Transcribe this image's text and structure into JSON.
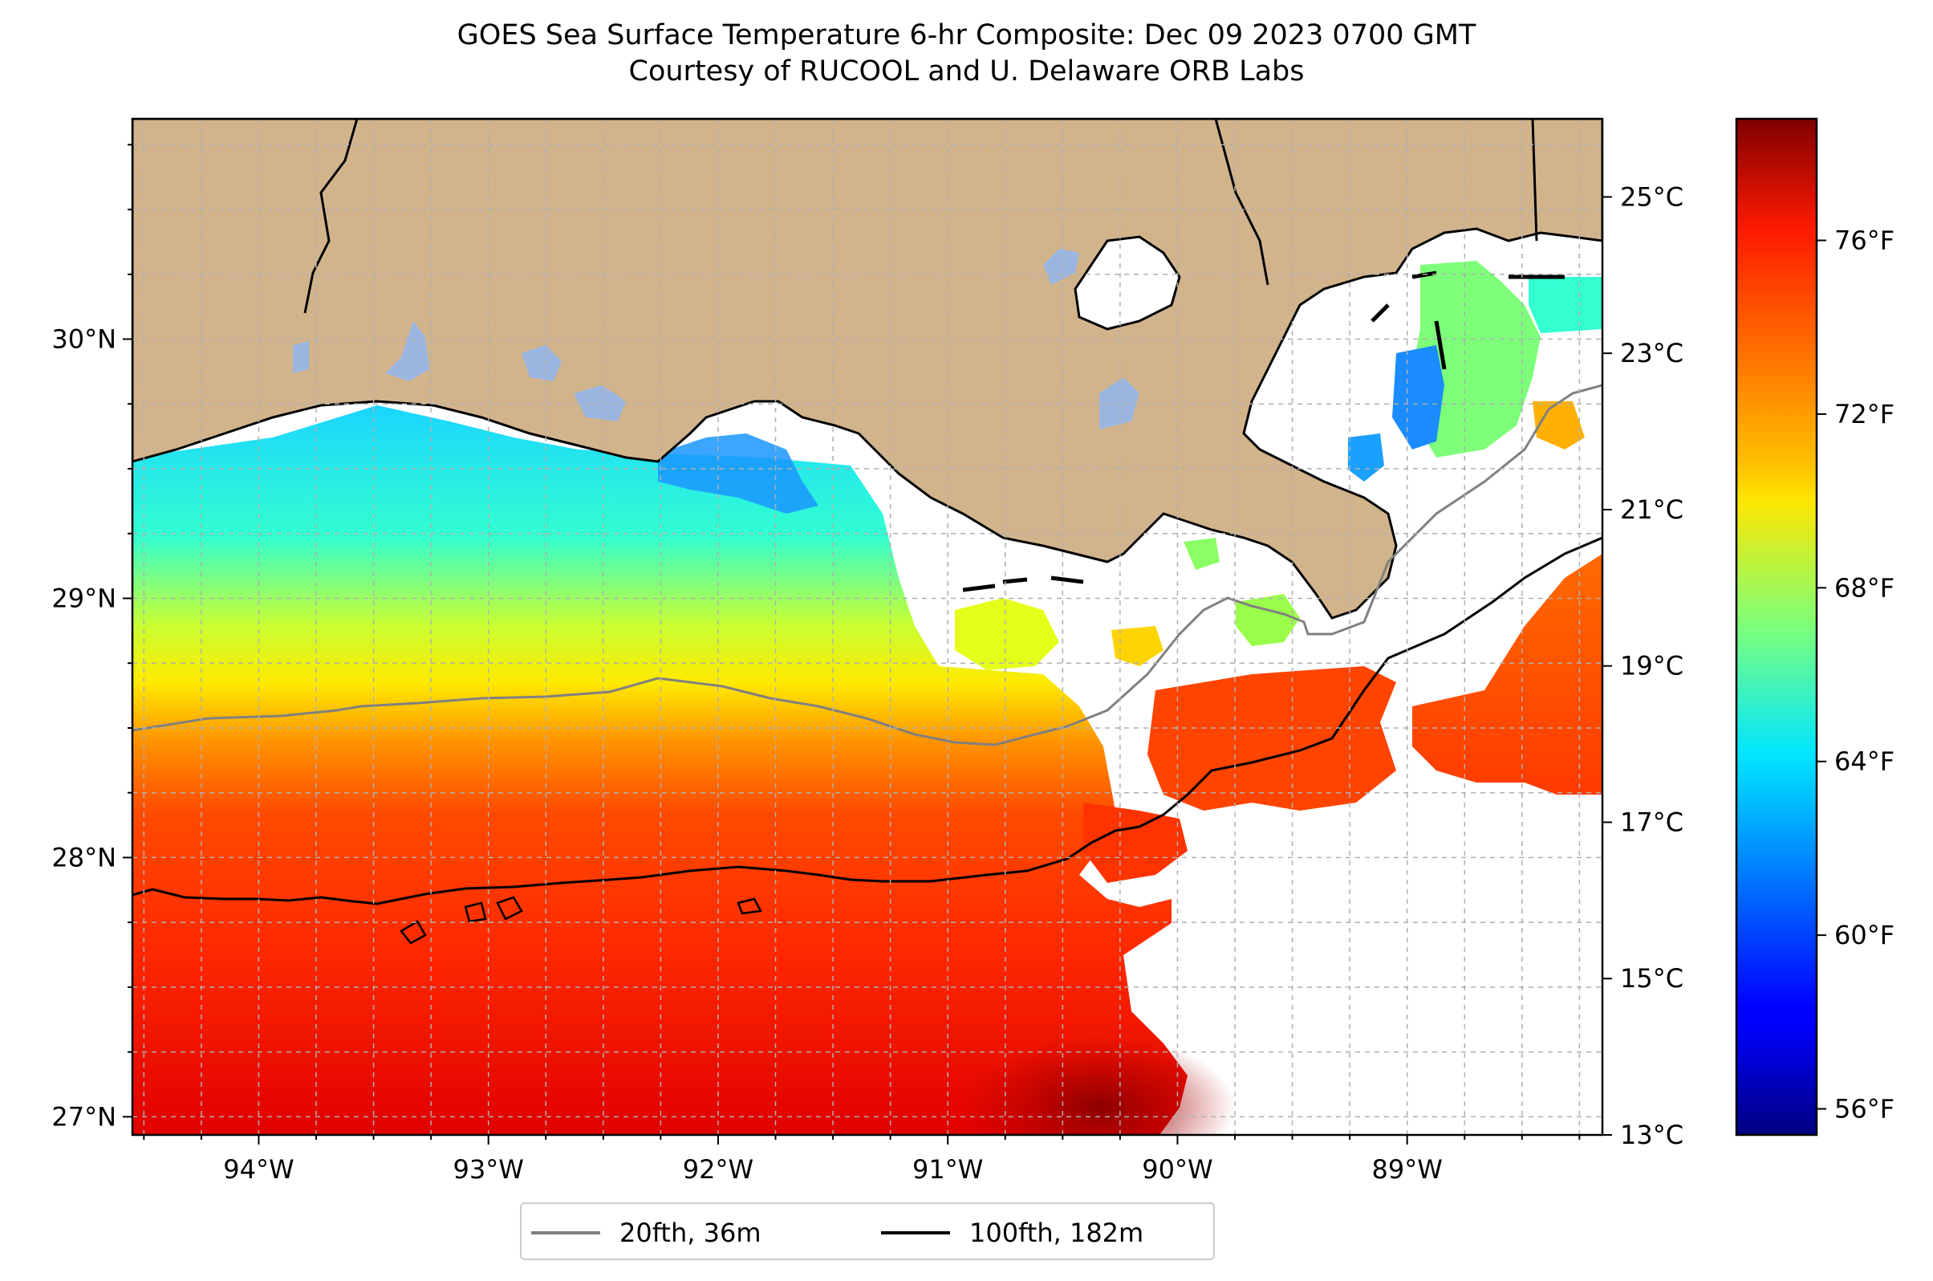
{
  "title": {
    "line1": "GOES Sea Surface Temperature 6-hr Composite: Dec 09 2023 0700 GMT",
    "line2": "Courtesy of RUCOOL and U. Delaware ORB Labs"
  },
  "map": {
    "lon_range": [
      -94.55,
      -88.15
    ],
    "lat_range": [
      26.93,
      30.85
    ],
    "lon_ticks": [
      {
        "value": -94,
        "label": "94°W"
      },
      {
        "value": -93,
        "label": "93°W"
      },
      {
        "value": -92,
        "label": "92°W"
      },
      {
        "value": -91,
        "label": "91°W"
      },
      {
        "value": -90,
        "label": "90°W"
      },
      {
        "value": -89,
        "label": "89°W"
      }
    ],
    "lat_ticks": [
      {
        "value": 30,
        "label": "30°N"
      },
      {
        "value": 29,
        "label": "29°N"
      },
      {
        "value": 28,
        "label": "28°N"
      },
      {
        "value": 27,
        "label": "27°N"
      }
    ],
    "gridlines": true,
    "colors": {
      "land": "#d2b48c",
      "lakes": "#9ab6e0",
      "no_data": "#ffffff",
      "isobath_20fth": "#808080",
      "isobath_100fth": "#000000"
    }
  },
  "colorbar": {
    "colormap": "jet",
    "range_c": [
      13,
      26
    ],
    "celsius_ticks": [
      {
        "value": 25,
        "label": "25°C"
      },
      {
        "value": 23,
        "label": "23°C"
      },
      {
        "value": 21,
        "label": "21°C"
      },
      {
        "value": 19,
        "label": "19°C"
      },
      {
        "value": 17,
        "label": "17°C"
      },
      {
        "value": 15,
        "label": "15°C"
      },
      {
        "value": 13,
        "label": "13°C"
      }
    ],
    "fahrenheit_ticks": [
      {
        "value": 76,
        "label": "76°F"
      },
      {
        "value": 72,
        "label": "72°F"
      },
      {
        "value": 68,
        "label": "68°F"
      },
      {
        "value": 64,
        "label": "64°F"
      },
      {
        "value": 60,
        "label": "60°F"
      },
      {
        "value": 56,
        "label": "56°F"
      }
    ]
  },
  "legend": {
    "items": [
      {
        "label": "20fth, 36m",
        "color": "#808080"
      },
      {
        "label": "100fth, 182m",
        "color": "#000000"
      }
    ]
  }
}
